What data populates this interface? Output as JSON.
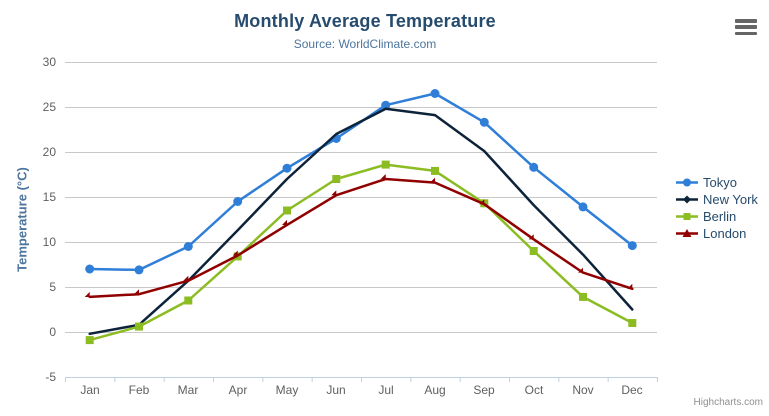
{
  "header": {
    "title": "Monthly Average Temperature",
    "subtitle": "Source: WorldClimate.com"
  },
  "toolbar": {
    "context_menu_icon": "hamburger-icon"
  },
  "credits": {
    "label": "Highcharts.com"
  },
  "chart_data": {
    "type": "line",
    "title": "Monthly Average Temperature",
    "subtitle": "Source: WorldClimate.com",
    "categories": [
      "Jan",
      "Feb",
      "Mar",
      "Apr",
      "May",
      "Jun",
      "Jul",
      "Aug",
      "Sep",
      "Oct",
      "Nov",
      "Dec"
    ],
    "xlabel": "",
    "ylabel": "Temperature (°C)",
    "ylim": [
      -5,
      30
    ],
    "ytick_interval": 5,
    "grid": true,
    "legend_position": "right",
    "series": [
      {
        "name": "Tokyo",
        "color": "#2f7ed8",
        "marker": "circle",
        "values": [
          7.0,
          6.9,
          9.5,
          14.5,
          18.2,
          21.5,
          25.2,
          26.5,
          23.3,
          18.3,
          13.9,
          9.6
        ]
      },
      {
        "name": "New York",
        "color": "#0d233a",
        "marker": "diamond",
        "values": [
          -0.2,
          0.8,
          5.7,
          11.3,
          17.0,
          22.0,
          24.8,
          24.1,
          20.1,
          14.1,
          8.6,
          2.5
        ]
      },
      {
        "name": "Berlin",
        "color": "#8bbc21",
        "marker": "square",
        "values": [
          -0.9,
          0.6,
          3.5,
          8.4,
          13.5,
          17.0,
          18.6,
          17.9,
          14.3,
          9.0,
          3.9,
          1.0
        ]
      },
      {
        "name": "London",
        "color": "#910000",
        "marker": "triangle",
        "values": [
          3.9,
          4.2,
          5.7,
          8.5,
          11.9,
          15.2,
          17.0,
          16.6,
          14.2,
          10.3,
          6.6,
          4.8
        ]
      }
    ],
    "colors": {
      "title": "#274b6d",
      "subtitle": "#4d759e",
      "axis_title": "#4d759e",
      "tick_label": "#606060",
      "gridline": "#c8c8c8",
      "axis_line": "#c0d0e0",
      "legend_text": "#274b6d",
      "credit": "#909090"
    }
  }
}
